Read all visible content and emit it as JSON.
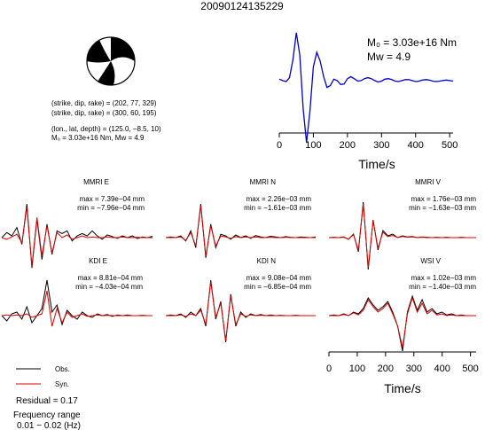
{
  "page": {
    "title": "20090124135229"
  },
  "source_parameters": {
    "moment_line": "M₀ = 3.03e+16 Nm",
    "mw_line": "Mw = 4.9",
    "strike_dip_rake_1": "(strike, dip, rake) = (202, 77, 329)",
    "strike_dip_rake_2": "(strike, dip, rake) = (300, 60, 195)",
    "location": "(lon., lat, depth) = (125.0, −8.5, 10)",
    "moment_summary": "M₀ = 3.03e+16 Nm, Mw = 4.9"
  },
  "legend": {
    "observed": "Obs.",
    "synthetic": "Syn.",
    "observed_color": "#000000",
    "synthetic_color": "#e00000"
  },
  "fit": {
    "residual": "Residual = 0.17",
    "frequency_label": "Frequency range",
    "frequency_value": "0.01 − 0.02 (Hz)"
  },
  "stf_axis": {
    "xlabel": "Time/s",
    "ticks": [
      0,
      100,
      200,
      300,
      400,
      500
    ]
  },
  "waveform_axis": {
    "xlabel": "Time/s",
    "ticks": [
      0,
      100,
      200,
      300,
      400,
      500
    ]
  },
  "chart_data": [
    {
      "type": "line",
      "id": "source-time-function",
      "x_range": [
        0,
        510
      ],
      "xlabel": "Time/s",
      "series": [
        {
          "color": "#0000cc",
          "x": [
            0,
            10,
            20,
            30,
            40,
            50,
            60,
            70,
            80,
            90,
            100,
            110,
            120,
            130,
            140,
            150,
            160,
            170,
            180,
            190,
            200,
            210,
            220,
            230,
            240,
            250,
            260,
            270,
            280,
            290,
            300,
            310,
            320,
            330,
            340,
            350,
            360,
            370,
            380,
            390,
            400,
            410,
            420,
            430,
            440,
            450,
            460,
            470,
            480,
            490,
            500,
            510
          ],
          "y": [
            0.05,
            0.02,
            0.0,
            0.08,
            0.45,
            1.0,
            0.55,
            -0.55,
            -1.25,
            -0.6,
            0.3,
            0.6,
            0.42,
            0.1,
            -0.12,
            -0.08,
            0.05,
            0.02,
            -0.06,
            -0.05,
            0.06,
            0.1,
            0.06,
            0.01,
            0.02,
            0.06,
            0.08,
            0.06,
            0.02,
            -0.01,
            0.01,
            0.05,
            0.06,
            0.04,
            0.01,
            0.0,
            0.02,
            0.04,
            0.04,
            0.02,
            0.0,
            0.01,
            0.03,
            0.04,
            0.03,
            0.01,
            0.0,
            0.01,
            0.02,
            0.03,
            0.02,
            0.01
          ]
        }
      ]
    },
    {
      "type": "line",
      "id": "MMRI-E",
      "station": "MMRI E",
      "max": "max = 7.39e−04 mm",
      "min": "min = −7.96e−04 mm",
      "x": [
        0,
        10,
        20,
        30,
        40,
        50,
        60,
        70,
        80,
        90,
        100,
        110,
        120,
        130,
        140,
        150,
        160,
        170,
        180,
        190,
        200,
        210,
        220,
        230,
        240,
        250,
        260,
        270,
        280,
        290,
        300
      ],
      "obs": [
        0.0,
        0.15,
        0.05,
        0.3,
        -0.2,
        1.0,
        -0.9,
        0.55,
        -0.65,
        0.4,
        -0.5,
        0.2,
        0.12,
        0.2,
        -0.1,
        0.05,
        0.12,
        0.05,
        0.2,
        0.05,
        -0.05,
        0.08,
        0.03,
        -0.02,
        0.05,
        0.0,
        0.05,
        -0.03,
        0.02,
        0.0,
        0.04
      ],
      "syn": [
        0.0,
        -0.05,
        0.02,
        0.1,
        -0.15,
        0.9,
        -0.85,
        0.6,
        -0.55,
        0.35,
        -0.45,
        0.15,
        0.0,
        0.08,
        -0.05,
        0.0,
        0.05,
        0.0,
        0.02,
        0.0,
        0.0,
        0.02,
        0.0,
        0.0,
        0.02,
        0.0,
        0.0,
        0.01,
        0.0,
        0.0,
        0.0
      ]
    },
    {
      "type": "line",
      "id": "MMRI-N",
      "station": "MMRI N",
      "max": "max = 2.26e−03 mm",
      "min": "min = −1.61e−03 mm",
      "x": [
        0,
        10,
        20,
        30,
        40,
        50,
        60,
        70,
        80,
        90,
        100,
        110,
        120,
        130,
        140,
        150,
        160,
        170,
        180,
        190,
        200,
        210,
        220,
        230,
        240,
        250,
        260,
        270,
        280,
        290,
        300
      ],
      "obs": [
        0.0,
        0.02,
        0.0,
        0.05,
        -0.1,
        0.2,
        -0.3,
        1.0,
        -0.6,
        0.4,
        -0.3,
        0.1,
        0.05,
        -0.05,
        0.08,
        0.0,
        0.05,
        -0.02,
        0.06,
        0.02,
        0.0,
        0.04,
        0.02,
        0.0,
        0.03,
        0.01,
        0.0,
        0.02,
        0.01,
        0.0,
        0.02
      ],
      "syn": [
        0.0,
        0.0,
        0.0,
        0.02,
        -0.08,
        0.15,
        -0.25,
        0.95,
        -0.55,
        0.35,
        -0.25,
        0.05,
        0.02,
        -0.02,
        0.03,
        0.0,
        0.02,
        0.0,
        0.02,
        0.0,
        0.0,
        0.01,
        0.0,
        0.0,
        0.01,
        0.0,
        0.0,
        0.0,
        0.0,
        0.0,
        0.0
      ]
    },
    {
      "type": "line",
      "id": "MMRI-V",
      "station": "MMRI V",
      "max": "max = 1.76e−03 mm",
      "min": "min = −1.63e−03 mm",
      "x": [
        0,
        10,
        20,
        30,
        40,
        50,
        60,
        70,
        80,
        90,
        100,
        110,
        120,
        130,
        140,
        150,
        160,
        170,
        180,
        190,
        200,
        210,
        220,
        230,
        240,
        250,
        260,
        270,
        280,
        290,
        300
      ],
      "obs": [
        0.0,
        0.01,
        0.0,
        0.02,
        -0.05,
        0.1,
        -0.4,
        1.0,
        -0.9,
        0.5,
        -0.35,
        0.2,
        0.05,
        0.1,
        0.0,
        0.05,
        0.02,
        0.03,
        0.0,
        0.02,
        0.01,
        0.0,
        0.01,
        0.0,
        0.01,
        0.0,
        0.0,
        0.01,
        0.0,
        0.0,
        0.0
      ],
      "syn": [
        0.0,
        0.0,
        0.0,
        0.01,
        -0.04,
        0.08,
        -0.35,
        0.95,
        -0.85,
        0.48,
        -0.3,
        0.15,
        0.03,
        0.06,
        0.0,
        0.03,
        0.01,
        0.02,
        0.0,
        0.01,
        0.0,
        0.0,
        0.0,
        0.0,
        0.0,
        0.0,
        0.0,
        0.0,
        0.0,
        0.0,
        0.0
      ]
    },
    {
      "type": "line",
      "id": "KDI-E",
      "station": "KDI E",
      "max": "max = 8.81e−04 mm",
      "min": "min = −4.03e−04 mm",
      "x": [
        0,
        10,
        20,
        30,
        40,
        50,
        60,
        70,
        80,
        90,
        100,
        110,
        120,
        130,
        140,
        150,
        160,
        170,
        180,
        190,
        200,
        210,
        220,
        230,
        240,
        250,
        260,
        270,
        280,
        290,
        300
      ],
      "obs": [
        0.0,
        -0.15,
        0.05,
        0.1,
        -0.1,
        0.25,
        -0.2,
        0.0,
        0.2,
        1.0,
        0.1,
        0.3,
        -0.25,
        0.15,
        0.0,
        -0.1,
        0.1,
        0.0,
        -0.05,
        0.05,
        0.0,
        0.03,
        -0.02,
        0.02,
        0.0,
        0.02,
        0.0,
        0.0,
        0.01,
        0.0,
        0.0
      ],
      "syn": [
        0.0,
        0.02,
        0.0,
        0.02,
        0.0,
        0.05,
        -0.05,
        0.0,
        0.05,
        0.7,
        -0.3,
        0.2,
        -0.2,
        0.1,
        -0.05,
        0.0,
        0.05,
        -0.02,
        0.0,
        0.02,
        0.0,
        0.01,
        0.0,
        0.0,
        0.0,
        0.0,
        0.0,
        0.0,
        0.0,
        0.0,
        0.0
      ]
    },
    {
      "type": "line",
      "id": "KDI-N",
      "station": "KDI N",
      "max": "max = 9.08e−04 mm",
      "min": "min = −6.85e−04 mm",
      "x": [
        0,
        10,
        20,
        30,
        40,
        50,
        60,
        70,
        80,
        90,
        100,
        110,
        120,
        130,
        140,
        150,
        160,
        170,
        180,
        190,
        200,
        210,
        220,
        230,
        240,
        250,
        260,
        270,
        280,
        290,
        300
      ],
      "obs": [
        0.0,
        0.02,
        0.0,
        0.05,
        -0.05,
        0.1,
        0.0,
        0.2,
        -0.3,
        1.0,
        -0.1,
        0.4,
        -0.75,
        0.6,
        -0.3,
        0.1,
        -0.05,
        0.05,
        0.0,
        0.03,
        0.0,
        0.02,
        0.0,
        0.01,
        0.0,
        0.0,
        0.01,
        0.0,
        0.0,
        0.0,
        0.0
      ],
      "syn": [
        0.0,
        0.0,
        0.0,
        0.02,
        -0.02,
        0.05,
        0.0,
        0.15,
        -0.25,
        0.95,
        -0.05,
        0.35,
        -0.7,
        0.55,
        -0.25,
        0.05,
        -0.02,
        0.02,
        0.0,
        0.01,
        0.0,
        0.0,
        0.0,
        0.0,
        0.0,
        0.0,
        0.0,
        0.0,
        0.0,
        0.0,
        0.0
      ]
    },
    {
      "type": "line",
      "id": "WSI-V",
      "station": "WSI V",
      "max": "max = 1.02e−03 mm",
      "min": "min = −1.40e−03 mm",
      "x": [
        0,
        10,
        20,
        30,
        40,
        50,
        60,
        70,
        80,
        90,
        100,
        110,
        120,
        130,
        140,
        150,
        160,
        170,
        180,
        190,
        200,
        210,
        220,
        230,
        240,
        250,
        260,
        270,
        280,
        290,
        300
      ],
      "obs": [
        0.0,
        0.02,
        0.0,
        0.05,
        0.0,
        0.1,
        0.05,
        0.2,
        0.5,
        0.3,
        0.15,
        0.25,
        0.4,
        0.1,
        -0.3,
        -1.0,
        0.1,
        0.55,
        0.15,
        0.45,
        0.1,
        0.2,
        0.05,
        0.1,
        0.02,
        0.05,
        0.0,
        0.02,
        0.0,
        0.0,
        0.0
      ],
      "syn": [
        0.0,
        0.0,
        0.0,
        0.03,
        0.0,
        0.08,
        0.02,
        0.15,
        0.45,
        0.25,
        0.1,
        0.2,
        0.35,
        0.05,
        -0.3,
        -0.9,
        0.05,
        0.5,
        0.1,
        0.35,
        0.05,
        0.15,
        0.02,
        0.05,
        0.0,
        0.02,
        0.0,
        0.0,
        0.0,
        0.0,
        0.0
      ]
    }
  ]
}
